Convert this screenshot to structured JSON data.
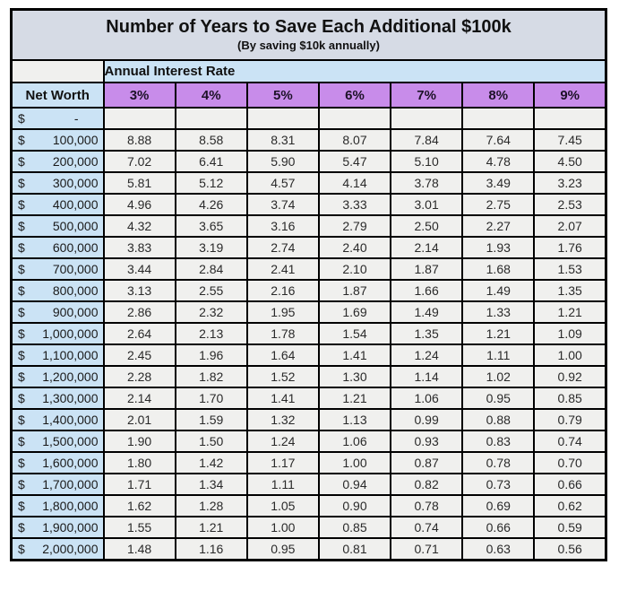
{
  "title": "Number of Years to Save Each Additional $100k",
  "subtitle": "(By saving $10k annually)",
  "colors": {
    "title_band_bg": "#d6dbe5",
    "blue_header_bg": "#cbe3f5",
    "purple_header_bg": "#c88cea",
    "data_cell_bg": "#f0f0ee",
    "border": "#000000"
  },
  "chart_data": {
    "type": "table",
    "title": "Number of Years to Save Each Additional $100k",
    "subtitle": "(By saving $10k annually)",
    "group_header": "Annual Interest Rate",
    "row_header": "Net Worth",
    "columns": [
      "3%",
      "4%",
      "5%",
      "6%",
      "7%",
      "8%",
      "9%"
    ],
    "rows": [
      {
        "currency": "$",
        "amount": "-",
        "net_worth": "$ -",
        "values": [
          "",
          "",
          "",
          "",
          "",
          "",
          ""
        ]
      },
      {
        "currency": "$",
        "amount": "100,000",
        "net_worth": "$100,000",
        "values": [
          "8.88",
          "8.58",
          "8.31",
          "8.07",
          "7.84",
          "7.64",
          "7.45"
        ]
      },
      {
        "currency": "$",
        "amount": "200,000",
        "net_worth": "$200,000",
        "values": [
          "7.02",
          "6.41",
          "5.90",
          "5.47",
          "5.10",
          "4.78",
          "4.50"
        ]
      },
      {
        "currency": "$",
        "amount": "300,000",
        "net_worth": "$300,000",
        "values": [
          "5.81",
          "5.12",
          "4.57",
          "4.14",
          "3.78",
          "3.49",
          "3.23"
        ]
      },
      {
        "currency": "$",
        "amount": "400,000",
        "net_worth": "$400,000",
        "values": [
          "4.96",
          "4.26",
          "3.74",
          "3.33",
          "3.01",
          "2.75",
          "2.53"
        ]
      },
      {
        "currency": "$",
        "amount": "500,000",
        "net_worth": "$500,000",
        "values": [
          "4.32",
          "3.65",
          "3.16",
          "2.79",
          "2.50",
          "2.27",
          "2.07"
        ]
      },
      {
        "currency": "$",
        "amount": "600,000",
        "net_worth": "$600,000",
        "values": [
          "3.83",
          "3.19",
          "2.74",
          "2.40",
          "2.14",
          "1.93",
          "1.76"
        ]
      },
      {
        "currency": "$",
        "amount": "700,000",
        "net_worth": "$700,000",
        "values": [
          "3.44",
          "2.84",
          "2.41",
          "2.10",
          "1.87",
          "1.68",
          "1.53"
        ]
      },
      {
        "currency": "$",
        "amount": "800,000",
        "net_worth": "$800,000",
        "values": [
          "3.13",
          "2.55",
          "2.16",
          "1.87",
          "1.66",
          "1.49",
          "1.35"
        ]
      },
      {
        "currency": "$",
        "amount": "900,000",
        "net_worth": "$900,000",
        "values": [
          "2.86",
          "2.32",
          "1.95",
          "1.69",
          "1.49",
          "1.33",
          "1.21"
        ]
      },
      {
        "currency": "$",
        "amount": "1,000,000",
        "net_worth": "$1,000,000",
        "values": [
          "2.64",
          "2.13",
          "1.78",
          "1.54",
          "1.35",
          "1.21",
          "1.09"
        ]
      },
      {
        "currency": "$",
        "amount": "1,100,000",
        "net_worth": "$1,100,000",
        "values": [
          "2.45",
          "1.96",
          "1.64",
          "1.41",
          "1.24",
          "1.11",
          "1.00"
        ]
      },
      {
        "currency": "$",
        "amount": "1,200,000",
        "net_worth": "$1,200,000",
        "values": [
          "2.28",
          "1.82",
          "1.52",
          "1.30",
          "1.14",
          "1.02",
          "0.92"
        ]
      },
      {
        "currency": "$",
        "amount": "1,300,000",
        "net_worth": "$1,300,000",
        "values": [
          "2.14",
          "1.70",
          "1.41",
          "1.21",
          "1.06",
          "0.95",
          "0.85"
        ]
      },
      {
        "currency": "$",
        "amount": "1,400,000",
        "net_worth": "$1,400,000",
        "values": [
          "2.01",
          "1.59",
          "1.32",
          "1.13",
          "0.99",
          "0.88",
          "0.79"
        ]
      },
      {
        "currency": "$",
        "amount": "1,500,000",
        "net_worth": "$1,500,000",
        "values": [
          "1.90",
          "1.50",
          "1.24",
          "1.06",
          "0.93",
          "0.83",
          "0.74"
        ]
      },
      {
        "currency": "$",
        "amount": "1,600,000",
        "net_worth": "$1,600,000",
        "values": [
          "1.80",
          "1.42",
          "1.17",
          "1.00",
          "0.87",
          "0.78",
          "0.70"
        ]
      },
      {
        "currency": "$",
        "amount": "1,700,000",
        "net_worth": "$1,700,000",
        "values": [
          "1.71",
          "1.34",
          "1.11",
          "0.94",
          "0.82",
          "0.73",
          "0.66"
        ]
      },
      {
        "currency": "$",
        "amount": "1,800,000",
        "net_worth": "$1,800,000",
        "values": [
          "1.62",
          "1.28",
          "1.05",
          "0.90",
          "0.78",
          "0.69",
          "0.62"
        ]
      },
      {
        "currency": "$",
        "amount": "1,900,000",
        "net_worth": "$1,900,000",
        "values": [
          "1.55",
          "1.21",
          "1.00",
          "0.85",
          "0.74",
          "0.66",
          "0.59"
        ]
      },
      {
        "currency": "$",
        "amount": "2,000,000",
        "net_worth": "$2,000,000",
        "values": [
          "1.48",
          "1.16",
          "0.95",
          "0.81",
          "0.71",
          "0.63",
          "0.56"
        ]
      }
    ]
  }
}
